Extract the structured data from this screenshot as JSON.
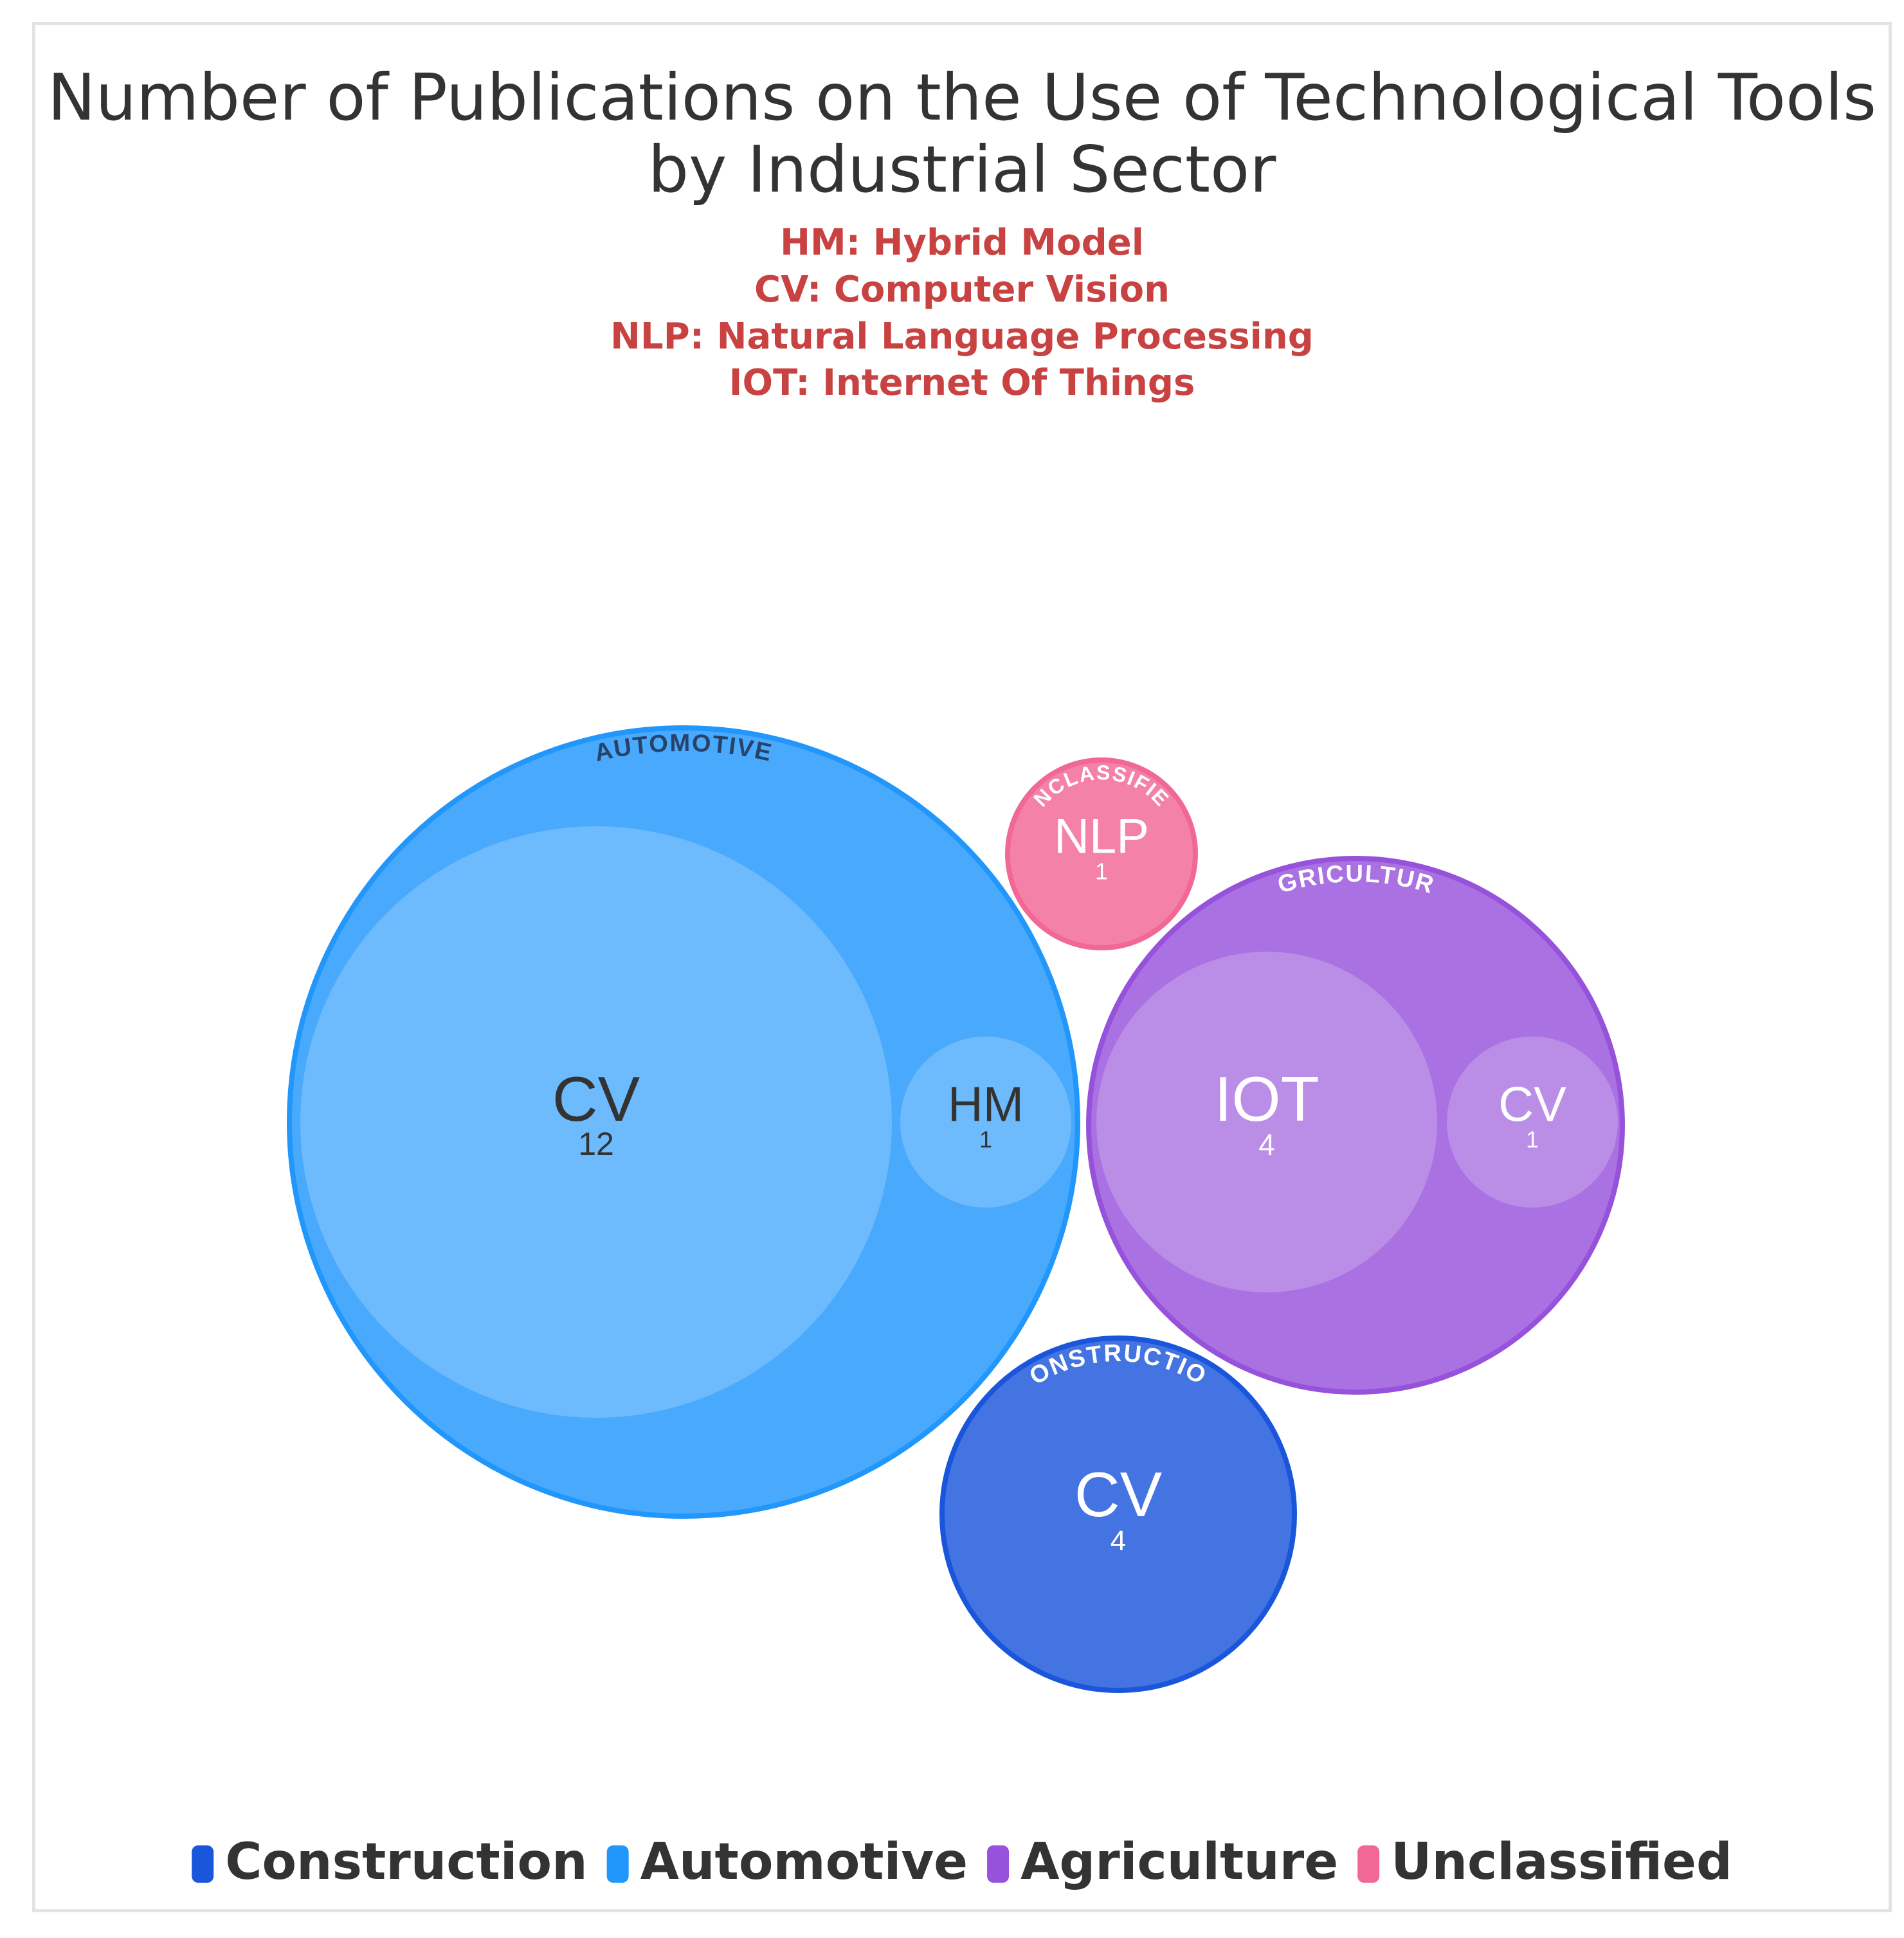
{
  "chart_data": {
    "type": "packed-bubble",
    "title_lines": [
      "Number of Publications on the Use of Technological Tools",
      "by Industrial Sector"
    ],
    "subtitle_lines": [
      "HM: Hybrid Model",
      "CV: Computer Vision",
      "NLP: Natural Language Processing",
      "IOT: Internet Of Things"
    ],
    "legend": [
      {
        "name": "Construction",
        "color": "#1a56db"
      },
      {
        "name": "Automotive",
        "color": "#2196fb"
      },
      {
        "name": "Agriculture",
        "color": "#9652da"
      },
      {
        "name": "Unclassified",
        "color": "#f16795"
      }
    ],
    "groups": [
      {
        "name": "Automotive",
        "label": "AUTOMOTIVE",
        "color": "#2196fb",
        "label_color": "#27436a",
        "children": [
          {
            "label": "CV",
            "value": 12,
            "text_color": "#333333"
          },
          {
            "label": "HM",
            "value": 1,
            "text_color": "#333333"
          }
        ]
      },
      {
        "name": "Unclassified",
        "label": "UNCLASSIFIED",
        "color": "#f16795",
        "label_color": "#ffffff",
        "children": [
          {
            "label": "NLP",
            "value": 1,
            "text_color": "#ffffff"
          }
        ]
      },
      {
        "name": "Agriculture",
        "label": "AGRICULTURE",
        "color": "#9652da",
        "label_color": "#ffffff",
        "children": [
          {
            "label": "IOT",
            "value": 4,
            "text_color": "#ffffff"
          },
          {
            "label": "CV",
            "value": 1,
            "text_color": "#ffffff"
          }
        ]
      },
      {
        "name": "Construction",
        "label": "CONSTRUCTION",
        "color": "#1a56db",
        "label_color": "#ffffff",
        "children": [
          {
            "label": "CV",
            "value": 4,
            "text_color": "#ffffff"
          }
        ]
      }
    ]
  }
}
